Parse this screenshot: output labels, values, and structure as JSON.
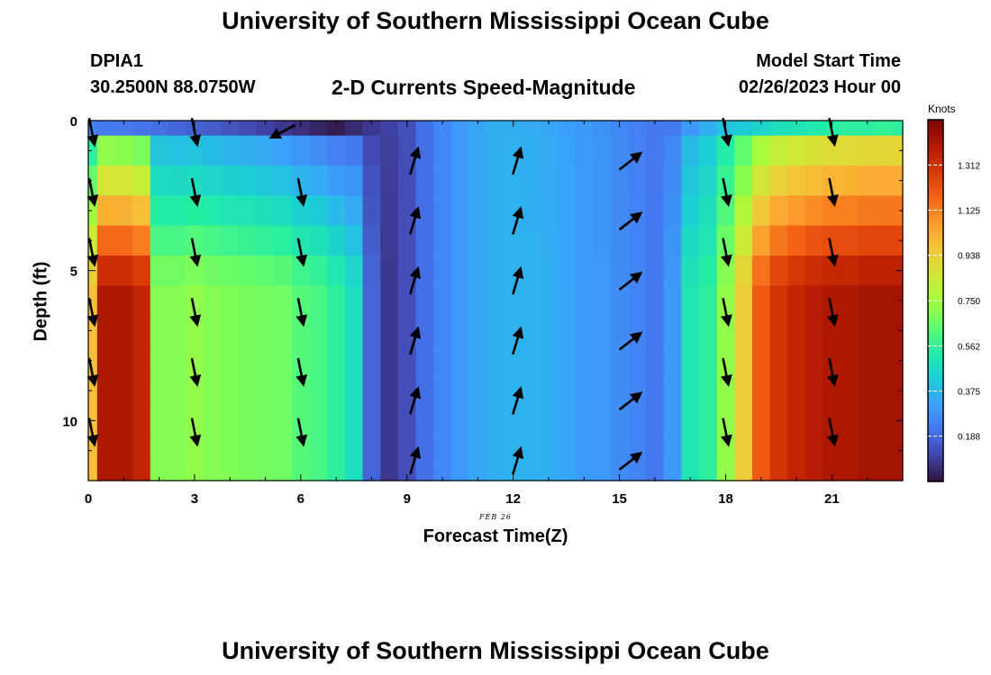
{
  "header": {
    "title": "University of Southern Mississippi Ocean Cube",
    "station": "DPIA1",
    "coordinates": "30.2500N  88.0750W",
    "product": "2-D Currents Speed-Magnitude",
    "start_label": "Model Start Time",
    "start_time": "02/26/2023 Hour 00"
  },
  "footer": {
    "title": "University of Southern Mississippi Ocean Cube"
  },
  "chart_data": {
    "type": "heatmap",
    "title": "2-D Currents Speed-Magnitude",
    "xlabel": "Forecast Time(Z)",
    "ylabel": "Depth (ft)",
    "x_annotation": "FEB 26",
    "xlim": [
      0,
      23
    ],
    "ylim": [
      12,
      0
    ],
    "xticks": [
      0,
      3,
      6,
      9,
      12,
      15,
      18,
      21
    ],
    "yticks": [
      0,
      5,
      10
    ],
    "colorbar": {
      "title": "Knots",
      "range": [
        0.0,
        1.5
      ],
      "ticks": [
        0.188,
        0.375,
        0.562,
        0.75,
        0.938,
        1.125,
        1.312
      ],
      "colors": [
        "#30123b",
        "#4145ab",
        "#4675ed",
        "#39a2fc",
        "#1bcfd4",
        "#24eca6",
        "#61fc6c",
        "#a4fc3b",
        "#d1e834",
        "#f3c63a",
        "#fe9b2d",
        "#f36315",
        "#d93806",
        "#b11901",
        "#7a0403"
      ]
    },
    "x": [
      0,
      0.5,
      1,
      1.5,
      2,
      2.5,
      3,
      3.5,
      4,
      4.5,
      5,
      5.5,
      6,
      6.5,
      7,
      7.5,
      8,
      8.5,
      9,
      9.5,
      10,
      10.5,
      11,
      11.5,
      12,
      12.5,
      13,
      13.5,
      14,
      14.5,
      15,
      15.5,
      16,
      16.5,
      17,
      17.5,
      18,
      18.5,
      19,
      19.5,
      20,
      20.5,
      21,
      21.5,
      22,
      22.5,
      23
    ],
    "depths": [
      0,
      1,
      2,
      3,
      4,
      5,
      6,
      7,
      8,
      9,
      10,
      11,
      12
    ],
    "speed_profile": [
      0.98,
      1.4,
      1.4,
      1.35,
      0.7,
      0.7,
      0.72,
      0.7,
      0.69,
      0.68,
      0.67,
      0.66,
      0.62,
      0.6,
      0.55,
      0.48,
      0.18,
      0.08,
      0.13,
      0.2,
      0.26,
      0.3,
      0.33,
      0.35,
      0.36,
      0.36,
      0.35,
      0.33,
      0.31,
      0.3,
      0.27,
      0.25,
      0.22,
      0.3,
      0.5,
      0.55,
      0.72,
      0.95,
      1.2,
      1.3,
      1.35,
      1.38,
      1.4,
      1.4,
      1.42,
      1.42,
      1.42
    ],
    "surface_speed": [
      0.25,
      0.23,
      0.22,
      0.21,
      0.2,
      0.18,
      0.17,
      0.16,
      0.14,
      0.12,
      0.1,
      0.08,
      0.06,
      0.04,
      0.02,
      0.05,
      0.08,
      0.1,
      0.13,
      0.2,
      0.26,
      0.3,
      0.33,
      0.35,
      0.35,
      0.34,
      0.33,
      0.32,
      0.3,
      0.28,
      0.26,
      0.24,
      0.22,
      0.23,
      0.3,
      0.35,
      0.4,
      0.42,
      0.45,
      0.48,
      0.5,
      0.52,
      0.54,
      0.55,
      0.55,
      0.56,
      0.55
    ],
    "vectors": {
      "columns": [
        {
          "x": 0.1,
          "depths": [
            0,
            2,
            4,
            6,
            8,
            10
          ],
          "dir": "south-southeast"
        },
        {
          "x": 3.0,
          "depths": [
            0,
            2,
            4,
            6,
            8,
            10
          ],
          "dir": "south-southeast"
        },
        {
          "x": 5.5,
          "depths": [
            0
          ],
          "dir": "southwest"
        },
        {
          "x": 6.0,
          "depths": [
            2,
            4,
            6,
            8,
            10
          ],
          "dir": "south-southeast"
        },
        {
          "x": 9.2,
          "depths": [
            1,
            3,
            5,
            7,
            9,
            11
          ],
          "dir": "north-northeast"
        },
        {
          "x": 12.1,
          "depths": [
            1,
            3,
            5,
            7,
            9,
            11
          ],
          "dir": "north-northeast"
        },
        {
          "x": 15.3,
          "depths": [
            1,
            3,
            5,
            7,
            9,
            11
          ],
          "dir": "northeast"
        },
        {
          "x": 18.0,
          "depths": [
            0,
            2,
            4,
            6,
            8,
            10
          ],
          "dir": "south-southeast"
        },
        {
          "x": 21.0,
          "depths": [
            0,
            2,
            4,
            6,
            8,
            10
          ],
          "dir": "south-southeast"
        }
      ]
    }
  }
}
